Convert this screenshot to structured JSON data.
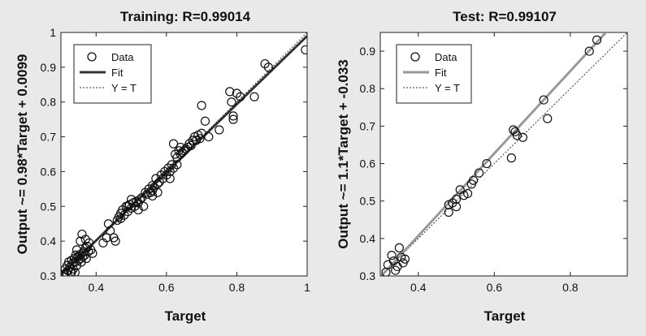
{
  "chart_data": [
    {
      "type": "scatter",
      "title": "Training: R=0.99014",
      "xlabel": "Target",
      "ylabel": "Output ~= 0.98*Target + 0.0099",
      "xlim": [
        0.3,
        1.0
      ],
      "ylim": [
        0.3,
        1.0
      ],
      "xticks": [
        0.4,
        0.6,
        0.8,
        1
      ],
      "xtick_labels": [
        "0.4",
        "0.6",
        "0.8",
        "1"
      ],
      "yticks": [
        0.3,
        0.4,
        0.5,
        0.6,
        0.7,
        0.8,
        0.9,
        1
      ],
      "ytick_labels": [
        "0.3",
        "0.4",
        "0.5",
        "0.6",
        "0.7",
        "0.8",
        "0.9",
        "1"
      ],
      "grid": false,
      "legend_position": "top-left",
      "legend": [
        "Data",
        "Fit",
        "Y = T"
      ],
      "fit_color": "#333333",
      "fit": {
        "slope": 0.98,
        "intercept": 0.0099
      },
      "points": [
        [
          0.31,
          0.305
        ],
        [
          0.312,
          0.32
        ],
        [
          0.315,
          0.31
        ],
        [
          0.318,
          0.33
        ],
        [
          0.32,
          0.315
        ],
        [
          0.322,
          0.34
        ],
        [
          0.325,
          0.325
        ],
        [
          0.328,
          0.31
        ],
        [
          0.33,
          0.345
        ],
        [
          0.332,
          0.335
        ],
        [
          0.335,
          0.32
        ],
        [
          0.338,
          0.35
        ],
        [
          0.34,
          0.34
        ],
        [
          0.342,
          0.36
        ],
        [
          0.345,
          0.33
        ],
        [
          0.348,
          0.355
        ],
        [
          0.35,
          0.345
        ],
        [
          0.352,
          0.36
        ],
        [
          0.355,
          0.35
        ],
        [
          0.358,
          0.34
        ],
        [
          0.36,
          0.365
        ],
        [
          0.362,
          0.355
        ],
        [
          0.365,
          0.37
        ],
        [
          0.368,
          0.36
        ],
        [
          0.37,
          0.38
        ],
        [
          0.372,
          0.35
        ],
        [
          0.375,
          0.385
        ],
        [
          0.378,
          0.37
        ],
        [
          0.38,
          0.395
        ],
        [
          0.36,
          0.42
        ],
        [
          0.37,
          0.405
        ],
        [
          0.355,
          0.4
        ],
        [
          0.345,
          0.375
        ],
        [
          0.34,
          0.31
        ],
        [
          0.33,
          0.31
        ],
        [
          0.385,
          0.375
        ],
        [
          0.39,
          0.365
        ],
        [
          0.42,
          0.395
        ],
        [
          0.43,
          0.41
        ],
        [
          0.435,
          0.45
        ],
        [
          0.44,
          0.43
        ],
        [
          0.45,
          0.41
        ],
        [
          0.455,
          0.4
        ],
        [
          0.46,
          0.46
        ],
        [
          0.465,
          0.47
        ],
        [
          0.47,
          0.465
        ],
        [
          0.47,
          0.48
        ],
        [
          0.475,
          0.49
        ],
        [
          0.48,
          0.475
        ],
        [
          0.485,
          0.5
        ],
        [
          0.49,
          0.485
        ],
        [
          0.49,
          0.5
        ],
        [
          0.495,
          0.505
        ],
        [
          0.5,
          0.495
        ],
        [
          0.5,
          0.52
        ],
        [
          0.505,
          0.51
        ],
        [
          0.51,
          0.5
        ],
        [
          0.515,
          0.515
        ],
        [
          0.52,
          0.51
        ],
        [
          0.52,
          0.49
        ],
        [
          0.525,
          0.52
        ],
        [
          0.53,
          0.525
        ],
        [
          0.535,
          0.5
        ],
        [
          0.54,
          0.54
        ],
        [
          0.545,
          0.535
        ],
        [
          0.55,
          0.55
        ],
        [
          0.555,
          0.54
        ],
        [
          0.56,
          0.545
        ],
        [
          0.56,
          0.56
        ],
        [
          0.565,
          0.555
        ],
        [
          0.57,
          0.58
        ],
        [
          0.575,
          0.565
        ],
        [
          0.58,
          0.57
        ],
        [
          0.585,
          0.59
        ],
        [
          0.59,
          0.58
        ],
        [
          0.595,
          0.6
        ],
        [
          0.6,
          0.59
        ],
        [
          0.605,
          0.61
        ],
        [
          0.61,
          0.6
        ],
        [
          0.615,
          0.62
        ],
        [
          0.62,
          0.61
        ],
        [
          0.625,
          0.65
        ],
        [
          0.63,
          0.64
        ],
        [
          0.63,
          0.62
        ],
        [
          0.635,
          0.66
        ],
        [
          0.64,
          0.65
        ],
        [
          0.645,
          0.655
        ],
        [
          0.65,
          0.66
        ],
        [
          0.655,
          0.665
        ],
        [
          0.66,
          0.67
        ],
        [
          0.665,
          0.68
        ],
        [
          0.67,
          0.675
        ],
        [
          0.675,
          0.69
        ],
        [
          0.68,
          0.7
        ],
        [
          0.685,
          0.69
        ],
        [
          0.69,
          0.705
        ],
        [
          0.695,
          0.695
        ],
        [
          0.7,
          0.71
        ],
        [
          0.7,
          0.79
        ],
        [
          0.71,
          0.745
        ],
        [
          0.72,
          0.7
        ],
        [
          0.75,
          0.72
        ],
        [
          0.78,
          0.83
        ],
        [
          0.785,
          0.8
        ],
        [
          0.79,
          0.76
        ],
        [
          0.79,
          0.75
        ],
        [
          0.8,
          0.825
        ],
        [
          0.81,
          0.815
        ],
        [
          0.85,
          0.815
        ],
        [
          0.88,
          0.91
        ],
        [
          0.89,
          0.9
        ],
        [
          0.995,
          0.95
        ],
        [
          0.56,
          0.53
        ],
        [
          0.61,
          0.58
        ],
        [
          0.575,
          0.54
        ],
        [
          0.64,
          0.67
        ],
        [
          0.62,
          0.68
        ]
      ]
    },
    {
      "type": "scatter",
      "title": "Test: R=0.99107",
      "xlabel": "Target",
      "ylabel": "Output ~= 1.1*Target + -0.033",
      "xlim": [
        0.3,
        0.95
      ],
      "ylim": [
        0.3,
        0.95
      ],
      "xticks": [
        0.4,
        0.6,
        0.8
      ],
      "xtick_labels": [
        "0.4",
        "0.6",
        "0.8"
      ],
      "yticks": [
        0.3,
        0.4,
        0.5,
        0.6,
        0.7,
        0.8,
        0.9
      ],
      "ytick_labels": [
        "0.3",
        "0.4",
        "0.5",
        "0.6",
        "0.7",
        "0.8",
        "0.9"
      ],
      "grid": false,
      "legend_position": "top-left",
      "legend": [
        "Data",
        "Fit",
        "Y = T"
      ],
      "fit_color": "#999999",
      "fit": {
        "slope": 1.1,
        "intercept": -0.033
      },
      "points": [
        [
          0.315,
          0.31
        ],
        [
          0.32,
          0.33
        ],
        [
          0.33,
          0.355
        ],
        [
          0.335,
          0.34
        ],
        [
          0.34,
          0.315
        ],
        [
          0.345,
          0.325
        ],
        [
          0.35,
          0.375
        ],
        [
          0.355,
          0.35
        ],
        [
          0.36,
          0.335
        ],
        [
          0.365,
          0.345
        ],
        [
          0.48,
          0.47
        ],
        [
          0.48,
          0.49
        ],
        [
          0.49,
          0.495
        ],
        [
          0.5,
          0.485
        ],
        [
          0.5,
          0.505
        ],
        [
          0.51,
          0.53
        ],
        [
          0.52,
          0.515
        ],
        [
          0.53,
          0.52
        ],
        [
          0.54,
          0.545
        ],
        [
          0.545,
          0.555
        ],
        [
          0.56,
          0.575
        ],
        [
          0.58,
          0.6
        ],
        [
          0.645,
          0.615
        ],
        [
          0.65,
          0.69
        ],
        [
          0.655,
          0.685
        ],
        [
          0.66,
          0.675
        ],
        [
          0.675,
          0.67
        ],
        [
          0.73,
          0.77
        ],
        [
          0.74,
          0.72
        ],
        [
          0.85,
          0.9
        ],
        [
          0.87,
          0.93
        ]
      ]
    }
  ]
}
